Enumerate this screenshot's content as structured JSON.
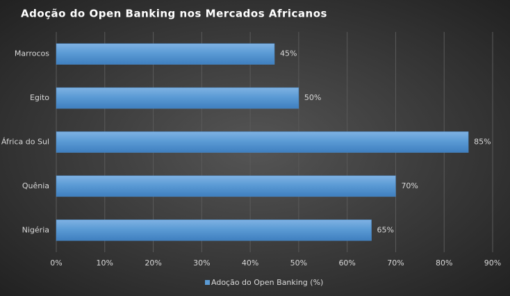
{
  "chart_data": {
    "type": "bar",
    "orientation": "horizontal",
    "title": "Adoção do Open Banking nos Mercados Africanos",
    "categories": [
      "Marrocos",
      "Egito",
      "África do Sul",
      "Quênia",
      "Nigéria"
    ],
    "series": [
      {
        "name": "Adoção do Open Banking (%)",
        "color": "#5b9bd5",
        "values": [
          45,
          50,
          85,
          70,
          65
        ],
        "value_labels": [
          "45%",
          "50%",
          "85%",
          "70%",
          "65%"
        ]
      }
    ],
    "xlim": [
      0,
      90
    ],
    "xticks": [
      {
        "value": 0,
        "label": "0%"
      },
      {
        "value": 10,
        "label": "10%"
      },
      {
        "value": 20,
        "label": "20%"
      },
      {
        "value": 30,
        "label": "30%"
      },
      {
        "value": 40,
        "label": "40%"
      },
      {
        "value": 50,
        "label": "50%"
      },
      {
        "value": 60,
        "label": "60%"
      },
      {
        "value": 70,
        "label": "70%"
      },
      {
        "value": 80,
        "label": "80%"
      },
      {
        "value": 90,
        "label": "90%"
      }
    ],
    "grid": true,
    "legend": "bottom"
  }
}
